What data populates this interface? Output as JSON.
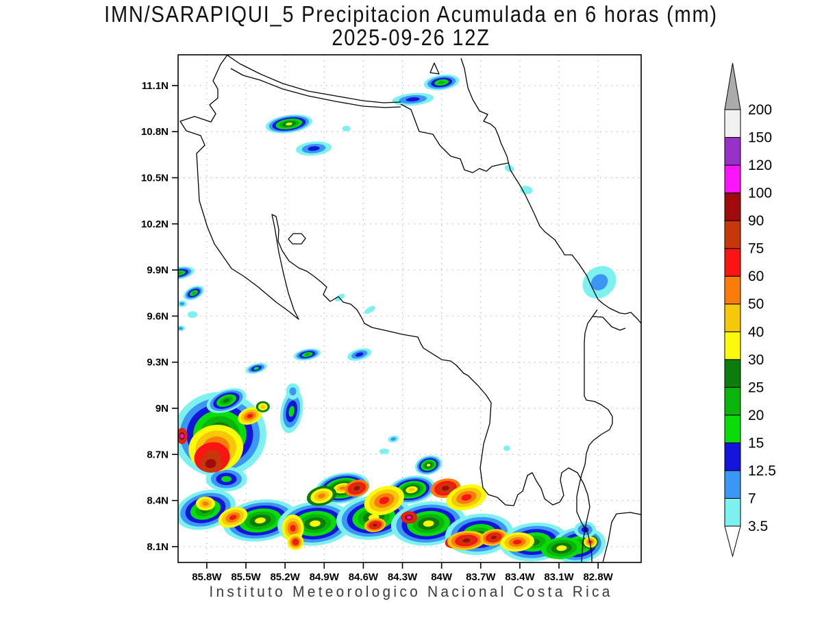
{
  "title": {
    "line1": "IMN/SARAPIQUI_5 Precipitacion Acumulada en 6 horas (mm)",
    "line2": "2025-09-26 12Z"
  },
  "footer": "Instituto Meteorologico Nacional Costa Rica",
  "chart_data": {
    "type": "heatmap",
    "subtype": "filled-contour-precipitation-map",
    "region": "Costa Rica",
    "units": "mm",
    "grid": "dotted, 0.3 degree spacing",
    "legend_position": "right",
    "extent": {
      "lon_west": 86.02,
      "lon_east": 82.47,
      "lat_south": 7.997,
      "lat_north": 11.3
    },
    "lon_ticks": [
      {
        "value": 85.8,
        "label": "85.8W"
      },
      {
        "value": 85.5,
        "label": "85.5W"
      },
      {
        "value": 85.2,
        "label": "85.2W"
      },
      {
        "value": 84.9,
        "label": "84.9W"
      },
      {
        "value": 84.6,
        "label": "84.6W"
      },
      {
        "value": 84.3,
        "label": "84.3W"
      },
      {
        "value": 84.0,
        "label": "84W"
      },
      {
        "value": 83.7,
        "label": "83.7W"
      },
      {
        "value": 83.4,
        "label": "83.4W"
      },
      {
        "value": 83.1,
        "label": "83.1W"
      },
      {
        "value": 82.8,
        "label": "82.8W"
      }
    ],
    "lat_ticks": [
      {
        "value": 11.1,
        "label": "11.1N"
      },
      {
        "value": 10.8,
        "label": "10.8N"
      },
      {
        "value": 10.5,
        "label": "10.5N"
      },
      {
        "value": 10.2,
        "label": "10.2N"
      },
      {
        "value": 9.9,
        "label": "9.9N"
      },
      {
        "value": 9.6,
        "label": "9.6N"
      },
      {
        "value": 9.3,
        "label": "9.3N"
      },
      {
        "value": 9.0,
        "label": "9N"
      },
      {
        "value": 8.7,
        "label": "8.7N"
      },
      {
        "value": 8.4,
        "label": "8.4N"
      },
      {
        "value": 8.1,
        "label": "8.1N"
      }
    ],
    "levels_mm": [
      3.5,
      7,
      12.5,
      15,
      20,
      25,
      30,
      40,
      50,
      60,
      75,
      90,
      100,
      120,
      150,
      200
    ],
    "bin_colors": [
      "#7DF0F0",
      "#3C96F5",
      "#1414DC",
      "#0ADC0A",
      "#0AB40A",
      "#0A7D0A",
      "#FAFA0A",
      "#F5C80A",
      "#FA7D0A",
      "#FA1414",
      "#C8370A",
      "#A00A0A",
      "#FA14FA",
      "#9632C8",
      "#F0F0F0"
    ],
    "colorbar": {
      "over_color": "#ABABAB",
      "under_color": "#FFFFFF",
      "labels_top_to_bottom": [
        "200",
        "150",
        "120",
        "100",
        "90",
        "75",
        "60",
        "50",
        "40",
        "30",
        "25",
        "20",
        "15",
        "12.5",
        "7",
        "3.5"
      ]
    },
    "cells": [
      {
        "lon_w": 84.0,
        "lat": 11.12,
        "rx_deg": 0.137,
        "ry_deg": 0.049,
        "rot_deg": -8,
        "base_mm": 3.5,
        "peak_mm": 20
      },
      {
        "lon_w": 84.22,
        "lat": 11.01,
        "rx_deg": 0.16,
        "ry_deg": 0.04,
        "rot_deg": -5,
        "base_mm": 3.5,
        "peak_mm": 12.5
      },
      {
        "lon_w": 85.17,
        "lat": 10.85,
        "rx_deg": 0.18,
        "ry_deg": 0.058,
        "rot_deg": -8,
        "base_mm": 3.5,
        "peak_mm": 30
      },
      {
        "lon_w": 84.98,
        "lat": 10.69,
        "rx_deg": 0.137,
        "ry_deg": 0.045,
        "rot_deg": -5,
        "base_mm": 3.5,
        "peak_mm": 12.5
      },
      {
        "lon_w": 84.73,
        "lat": 10.82,
        "rx_deg": 0.032,
        "ry_deg": 0.018,
        "rot_deg": 0,
        "base_mm": 3.5,
        "peak_mm": 3.5
      },
      {
        "lon_w": 83.48,
        "lat": 10.56,
        "rx_deg": 0.037,
        "ry_deg": 0.022,
        "rot_deg": 20,
        "base_mm": 3.5,
        "peak_mm": 3.5
      },
      {
        "lon_w": 83.35,
        "lat": 10.42,
        "rx_deg": 0.047,
        "ry_deg": 0.027,
        "rot_deg": 10,
        "base_mm": 3.5,
        "peak_mm": 3.5
      },
      {
        "lon_w": 82.79,
        "lat": 9.82,
        "rx_deg": 0.137,
        "ry_deg": 0.098,
        "rot_deg": -40,
        "base_mm": 3.5,
        "peak_mm": 7
      },
      {
        "lon_w": 86.01,
        "lat": 9.88,
        "rx_deg": 0.116,
        "ry_deg": 0.04,
        "rot_deg": -10,
        "base_mm": 3.5,
        "peak_mm": 20
      },
      {
        "lon_w": 85.9,
        "lat": 9.75,
        "rx_deg": 0.084,
        "ry_deg": 0.04,
        "rot_deg": -25,
        "base_mm": 3.5,
        "peak_mm": 20
      },
      {
        "lon_w": 85.99,
        "lat": 9.68,
        "rx_deg": 0.037,
        "ry_deg": 0.022,
        "rot_deg": 0,
        "base_mm": 3.5,
        "peak_mm": 7
      },
      {
        "lon_w": 85.91,
        "lat": 9.61,
        "rx_deg": 0.037,
        "ry_deg": 0.022,
        "rot_deg": 0,
        "base_mm": 3.5,
        "peak_mm": 3.5
      },
      {
        "lon_w": 86.0,
        "lat": 9.52,
        "rx_deg": 0.032,
        "ry_deg": 0.018,
        "rot_deg": 0,
        "base_mm": 3.5,
        "peak_mm": 7
      },
      {
        "lon_w": 85.42,
        "lat": 9.26,
        "rx_deg": 0.084,
        "ry_deg": 0.031,
        "rot_deg": -15,
        "base_mm": 3.5,
        "peak_mm": 15
      },
      {
        "lon_w": 85.03,
        "lat": 9.35,
        "rx_deg": 0.105,
        "ry_deg": 0.036,
        "rot_deg": -10,
        "base_mm": 3.5,
        "peak_mm": 20
      },
      {
        "lon_w": 84.63,
        "lat": 9.35,
        "rx_deg": 0.095,
        "ry_deg": 0.036,
        "rot_deg": -15,
        "base_mm": 3.5,
        "peak_mm": 12.5
      },
      {
        "lon_w": 84.55,
        "lat": 9.64,
        "rx_deg": 0.047,
        "ry_deg": 0.018,
        "rot_deg": -30,
        "base_mm": 3.5,
        "peak_mm": 3.5
      },
      {
        "lon_w": 84.78,
        "lat": 9.72,
        "rx_deg": 0.042,
        "ry_deg": 0.018,
        "rot_deg": -35,
        "base_mm": 3.5,
        "peak_mm": 3.5
      },
      {
        "lon_w": 84.44,
        "lat": 8.72,
        "rx_deg": 0.037,
        "ry_deg": 0.018,
        "rot_deg": 0,
        "base_mm": 3.5,
        "peak_mm": 3.5
      },
      {
        "lon_w": 83.5,
        "lat": 8.74,
        "rx_deg": 0.026,
        "ry_deg": 0.018,
        "rot_deg": 0,
        "base_mm": 3.5,
        "peak_mm": 3.5
      },
      {
        "lon_w": 84.37,
        "lat": 8.8,
        "rx_deg": 0.042,
        "ry_deg": 0.022,
        "rot_deg": -10,
        "base_mm": 3.5,
        "peak_mm": 7
      },
      {
        "lon_w": 85.7,
        "lat": 8.83,
        "rx_deg": 0.357,
        "ry_deg": 0.276,
        "rot_deg": 0,
        "base_mm": 3.5,
        "peak_mm": 30
      },
      {
        "lon_w": 85.65,
        "lat": 9.05,
        "rx_deg": 0.158,
        "ry_deg": 0.071,
        "rot_deg": -20,
        "base_mm": 3.5,
        "peak_mm": 25
      },
      {
        "lon_w": 85.15,
        "lat": 8.98,
        "rx_deg": 0.084,
        "ry_deg": 0.143,
        "rot_deg": 10,
        "base_mm": 3.5,
        "peak_mm": 15
      },
      {
        "lon_w": 85.14,
        "lat": 9.11,
        "rx_deg": 0.053,
        "ry_deg": 0.053,
        "rot_deg": 0,
        "base_mm": 3.5,
        "peak_mm": 7
      },
      {
        "lon_w": 85.65,
        "lat": 8.54,
        "rx_deg": 0.158,
        "ry_deg": 0.08,
        "rot_deg": 0,
        "base_mm": 3.5,
        "peak_mm": 15
      },
      {
        "lon_w": 85.73,
        "lat": 8.74,
        "rx_deg": 0.21,
        "ry_deg": 0.152,
        "rot_deg": -10,
        "base_mm": 30,
        "peak_mm": 60
      },
      {
        "lon_w": 85.76,
        "lat": 8.68,
        "rx_deg": 0.137,
        "ry_deg": 0.098,
        "rot_deg": -10,
        "base_mm": 60,
        "peak_mm": 75
      },
      {
        "lon_w": 85.77,
        "lat": 8.64,
        "rx_deg": 0.084,
        "ry_deg": 0.058,
        "rot_deg": -10,
        "base_mm": 75,
        "peak_mm": 90
      },
      {
        "lon_w": 85.99,
        "lat": 8.82,
        "rx_deg": 0.042,
        "ry_deg": 0.053,
        "rot_deg": 0,
        "base_mm": 60,
        "peak_mm": 100
      },
      {
        "lon_w": 85.47,
        "lat": 8.95,
        "rx_deg": 0.095,
        "ry_deg": 0.053,
        "rot_deg": -20,
        "base_mm": 30,
        "peak_mm": 60
      },
      {
        "lon_w": 85.37,
        "lat": 9.01,
        "rx_deg": 0.053,
        "ry_deg": 0.036,
        "rot_deg": 0,
        "base_mm": 25,
        "peak_mm": 40
      },
      {
        "lon_w": 85.81,
        "lat": 8.34,
        "rx_deg": 0.236,
        "ry_deg": 0.125,
        "rot_deg": -15,
        "base_mm": 3.5,
        "peak_mm": 25
      },
      {
        "lon_w": 85.39,
        "lat": 8.27,
        "rx_deg": 0.289,
        "ry_deg": 0.134,
        "rot_deg": -8,
        "base_mm": 3.5,
        "peak_mm": 30
      },
      {
        "lon_w": 84.97,
        "lat": 8.25,
        "rx_deg": 0.289,
        "ry_deg": 0.143,
        "rot_deg": -5,
        "base_mm": 3.5,
        "peak_mm": 30
      },
      {
        "lon_w": 84.52,
        "lat": 8.29,
        "rx_deg": 0.289,
        "ry_deg": 0.143,
        "rot_deg": -8,
        "base_mm": 3.5,
        "peak_mm": 30
      },
      {
        "lon_w": 84.1,
        "lat": 8.25,
        "rx_deg": 0.289,
        "ry_deg": 0.143,
        "rot_deg": -5,
        "base_mm": 3.5,
        "peak_mm": 30
      },
      {
        "lon_w": 83.71,
        "lat": 8.18,
        "rx_deg": 0.263,
        "ry_deg": 0.134,
        "rot_deg": -5,
        "base_mm": 3.5,
        "peak_mm": 25
      },
      {
        "lon_w": 83.29,
        "lat": 8.13,
        "rx_deg": 0.263,
        "ry_deg": 0.125,
        "rot_deg": -5,
        "base_mm": 3.5,
        "peak_mm": 25
      },
      {
        "lon_w": 82.95,
        "lat": 8.11,
        "rx_deg": 0.21,
        "ry_deg": 0.116,
        "rot_deg": -8,
        "base_mm": 3.5,
        "peak_mm": 25
      },
      {
        "lon_w": 84.76,
        "lat": 8.48,
        "rx_deg": 0.21,
        "ry_deg": 0.098,
        "rot_deg": -10,
        "base_mm": 3.5,
        "peak_mm": 50
      },
      {
        "lon_w": 84.23,
        "lat": 8.47,
        "rx_deg": 0.184,
        "ry_deg": 0.089,
        "rot_deg": -10,
        "base_mm": 3.5,
        "peak_mm": 40
      },
      {
        "lon_w": 84.1,
        "lat": 8.63,
        "rx_deg": 0.105,
        "ry_deg": 0.062,
        "rot_deg": -15,
        "base_mm": 3.5,
        "peak_mm": 30
      },
      {
        "lon_w": 85.6,
        "lat": 8.29,
        "rx_deg": 0.116,
        "ry_deg": 0.062,
        "rot_deg": -20,
        "base_mm": 30,
        "peak_mm": 60
      },
      {
        "lon_w": 85.81,
        "lat": 8.38,
        "rx_deg": 0.074,
        "ry_deg": 0.045,
        "rot_deg": 0,
        "base_mm": 30,
        "peak_mm": 50
      },
      {
        "lon_w": 85.14,
        "lat": 8.22,
        "rx_deg": 0.084,
        "ry_deg": 0.089,
        "rot_deg": 0,
        "base_mm": 30,
        "peak_mm": 60
      },
      {
        "lon_w": 85.12,
        "lat": 8.13,
        "rx_deg": 0.063,
        "ry_deg": 0.053,
        "rot_deg": 0,
        "base_mm": 30,
        "peak_mm": 75
      },
      {
        "lon_w": 84.65,
        "lat": 8.48,
        "rx_deg": 0.095,
        "ry_deg": 0.053,
        "rot_deg": -15,
        "base_mm": 50,
        "peak_mm": 90
      },
      {
        "lon_w": 84.44,
        "lat": 8.4,
        "rx_deg": 0.158,
        "ry_deg": 0.089,
        "rot_deg": -20,
        "base_mm": 30,
        "peak_mm": 60
      },
      {
        "lon_w": 84.51,
        "lat": 8.24,
        "rx_deg": 0.084,
        "ry_deg": 0.045,
        "rot_deg": -10,
        "base_mm": 40,
        "peak_mm": 90
      },
      {
        "lon_w": 84.92,
        "lat": 8.43,
        "rx_deg": 0.116,
        "ry_deg": 0.062,
        "rot_deg": -15,
        "base_mm": 25,
        "peak_mm": 50
      },
      {
        "lon_w": 83.97,
        "lat": 8.48,
        "rx_deg": 0.116,
        "ry_deg": 0.062,
        "rot_deg": -10,
        "base_mm": 50,
        "peak_mm": 90
      },
      {
        "lon_w": 83.81,
        "lat": 8.42,
        "rx_deg": 0.158,
        "ry_deg": 0.08,
        "rot_deg": -15,
        "base_mm": 30,
        "peak_mm": 60
      },
      {
        "lon_w": 84.25,
        "lat": 8.29,
        "rx_deg": 0.063,
        "ry_deg": 0.04,
        "rot_deg": 0,
        "base_mm": 60,
        "peak_mm": 100
      },
      {
        "lon_w": 83.9,
        "lat": 8.13,
        "rx_deg": 0.074,
        "ry_deg": 0.04,
        "rot_deg": -10,
        "base_mm": 60,
        "peak_mm": 100
      },
      {
        "lon_w": 83.81,
        "lat": 8.14,
        "rx_deg": 0.147,
        "ry_deg": 0.062,
        "rot_deg": -5,
        "base_mm": 40,
        "peak_mm": 90
      },
      {
        "lon_w": 83.6,
        "lat": 8.16,
        "rx_deg": 0.105,
        "ry_deg": 0.053,
        "rot_deg": -10,
        "base_mm": 40,
        "peak_mm": 90
      },
      {
        "lon_w": 83.42,
        "lat": 8.13,
        "rx_deg": 0.131,
        "ry_deg": 0.062,
        "rot_deg": -5,
        "base_mm": 30,
        "peak_mm": 60
      },
      {
        "lon_w": 83.08,
        "lat": 8.09,
        "rx_deg": 0.158,
        "ry_deg": 0.071,
        "rot_deg": -5,
        "base_mm": 15,
        "peak_mm": 30
      },
      {
        "lon_w": 82.86,
        "lat": 8.13,
        "rx_deg": 0.063,
        "ry_deg": 0.045,
        "rot_deg": 0,
        "base_mm": 25,
        "peak_mm": 60
      },
      {
        "lon_w": 82.9,
        "lat": 8.21,
        "rx_deg": 0.084,
        "ry_deg": 0.053,
        "rot_deg": 0,
        "base_mm": 3.5,
        "peak_mm": 12.5
      }
    ]
  }
}
